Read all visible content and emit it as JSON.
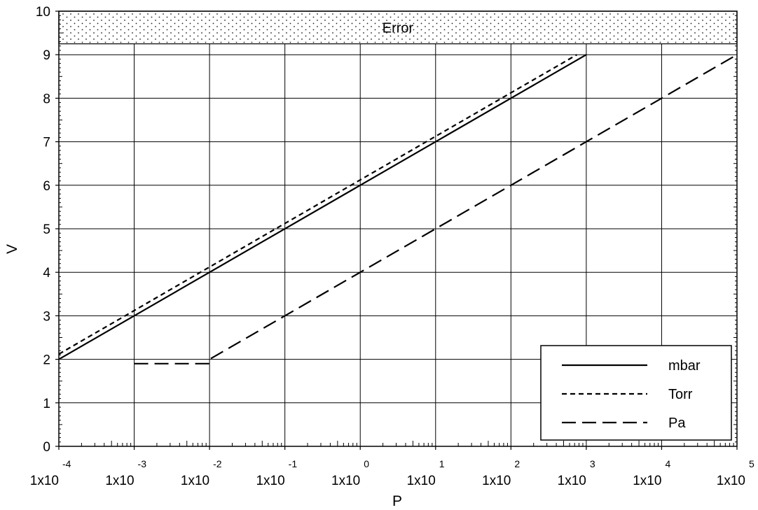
{
  "chart_data": {
    "type": "line",
    "xlabel": "P",
    "ylabel": "V",
    "x_scale": "log",
    "xlim": [
      0.0001,
      100000
    ],
    "ylim": [
      0,
      10
    ],
    "grid": true,
    "legend_position": "bottom-right",
    "x_ticks": [
      {
        "value": 0.0001,
        "base": "1x10",
        "exp": "-4"
      },
      {
        "value": 0.001,
        "base": "1x10",
        "exp": "-3"
      },
      {
        "value": 0.01,
        "base": "1x10",
        "exp": "-2"
      },
      {
        "value": 0.1,
        "base": "1x10",
        "exp": "-1"
      },
      {
        "value": 1,
        "base": "1x10",
        "exp": "0"
      },
      {
        "value": 10,
        "base": "1x10",
        "exp": "1"
      },
      {
        "value": 100,
        "base": "1x10",
        "exp": "2"
      },
      {
        "value": 1000,
        "base": "1x10",
        "exp": "3"
      },
      {
        "value": 10000,
        "base": "1x10",
        "exp": "4"
      },
      {
        "value": 100000,
        "base": "1x10",
        "exp": "5"
      }
    ],
    "y_ticks": [
      "0",
      "1",
      "2",
      "3",
      "4",
      "5",
      "6",
      "7",
      "8",
      "9",
      "10"
    ],
    "error_band": {
      "label": "Error",
      "y_from": 9.25,
      "y_to": 10
    },
    "series": [
      {
        "name": "mbar",
        "style": "solid",
        "points": [
          [
            0.0001,
            2
          ],
          [
            1000,
            9
          ]
        ]
      },
      {
        "name": "Torr",
        "style": "short-dash",
        "points": [
          [
            0.0001,
            2.12
          ],
          [
            750,
            9
          ]
        ]
      },
      {
        "name": "Pa",
        "style": "long-dash",
        "points": [
          [
            0.001,
            1.9
          ],
          [
            0.01,
            1.9
          ],
          [
            0.01,
            2
          ],
          [
            100000,
            9
          ]
        ]
      }
    ]
  }
}
